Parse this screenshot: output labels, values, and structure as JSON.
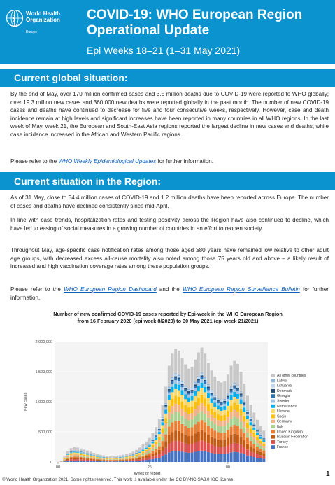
{
  "header": {
    "logo_line1": "World Health",
    "logo_line2": "Organization",
    "logo_region": "Europe",
    "title": "COVID-19: WHO European Region Operational Update",
    "subtitle": "Epi Weeks 18–21 (1–31 May 2021)"
  },
  "global": {
    "heading": "Current global situation:",
    "p1": "By the end of May, over 170 million confirmed cases and 3.5 million deaths due to COVID-19 were reported to WHO globally; over 19.3 million new cases and 360 000 new deaths were reported globally in the past month. The number of new COVID-19 cases and deaths have continued to decrease for five and four consecutive weeks, respectively. However, case and death incidence remain at high levels and significant increases have been reported in many countries in all WHO regions. In the last week of May, week 21, the European and South-East Asia regions reported the largest decline in new cases and deaths, while case incidence increased in the African and Western Pacific regions.",
    "p2_pre": "Please refer to the ",
    "p2_link": "WHO Weekly Epidemiological Updates",
    "p2_post": " for further information."
  },
  "region": {
    "heading": "Current situation in the Region:",
    "p1": "As of 31 May, close to 54.4 million cases of COVID-19 and 1.2 million deaths have been reported across Europe. The number of cases and deaths have declined consistently since mid-April.",
    "p2": "In line with case trends, hospitalization rates and testing positivity across the Region have also continued to decline, which have led to easing of social measures in a growing number of countries in an effort to reopen society.",
    "p3": "Throughout May, age-specific case notification rates among those aged ≥80 years have remained low relative to other adult age groups, with decreased excess all-cause mortality also noted among those 75 years old and above – a likely result of increased and high vaccination coverage rates among these population groups.",
    "p4_pre": "Please refer to the ",
    "p4_link1": "WHO European Region Dashboard",
    "p4_mid": " and the ",
    "p4_link2": "WHO European Region Surveillance Bulletin",
    "p4_post": " for further information."
  },
  "chart_title_line1": "Number of new confirmed COVID-19 cases reported by Epi-week in the WHO European Region",
  "chart_title_line2": "from 16 February 2020 (epi week 8/2020) to 30 May 2021 (epi week 21/2021)",
  "chart_data": {
    "type": "bar",
    "stacked": true,
    "xlabel": "Week of report",
    "ylabel": "New cases",
    "ylim": [
      0,
      2000000
    ],
    "y_ticks": [
      "0",
      "500,000",
      "1,000,000",
      "1,500,000",
      "2,000,000"
    ],
    "x_tick_labels": [
      "00",
      "26",
      "00"
    ],
    "grid": true,
    "legend_position": "right",
    "series": [
      {
        "name": "All other countries",
        "color": "#c8c8c8"
      },
      {
        "name": "Latvia",
        "color": "#8cb4dc"
      },
      {
        "name": "Lithuania",
        "color": "#bdd7ee"
      },
      {
        "name": "Denmark",
        "color": "#1f4e79"
      },
      {
        "name": "Georgia",
        "color": "#2e75b6"
      },
      {
        "name": "Sweden",
        "color": "#9dc3e6"
      },
      {
        "name": "Netherlands",
        "color": "#00b0f0"
      },
      {
        "name": "Ukraine",
        "color": "#ffd966"
      },
      {
        "name": "Spain",
        "color": "#ffc000"
      },
      {
        "name": "Germany",
        "color": "#f4b183"
      },
      {
        "name": "Italy",
        "color": "#a9d18e"
      },
      {
        "name": "United Kingdom",
        "color": "#ed7d31"
      },
      {
        "name": "Russian Federation",
        "color": "#c55a11"
      },
      {
        "name": "Turkey",
        "color": "#e05050"
      },
      {
        "name": "France",
        "color": "#4472c4"
      }
    ],
    "weekly_totals": [
      2000,
      15000,
      90000,
      180000,
      230000,
      245000,
      240000,
      225000,
      205000,
      190000,
      170000,
      150000,
      130000,
      120000,
      110000,
      100000,
      95000,
      95000,
      100000,
      110000,
      120000,
      135000,
      150000,
      170000,
      200000,
      240000,
      290000,
      340000,
      400000,
      480000,
      580000,
      720000,
      950000,
      1250000,
      1600000,
      1800000,
      1880000,
      1850000,
      1720000,
      1620000,
      1550000,
      1580000,
      1700000,
      1820000,
      1900000,
      1800000,
      1650000,
      1520000,
      1420000,
      1350000,
      1320000,
      1340000,
      1450000,
      1600000,
      1680000,
      1630000,
      1500000,
      1300000,
      1100000,
      950000,
      820000,
      700000,
      600000,
      520000
    ]
  },
  "footer": "© World Health Organization 2021. Some rights reserved. This work is available under the CC BY-NC-SA3.0 IGO license.",
  "page_number": "1"
}
